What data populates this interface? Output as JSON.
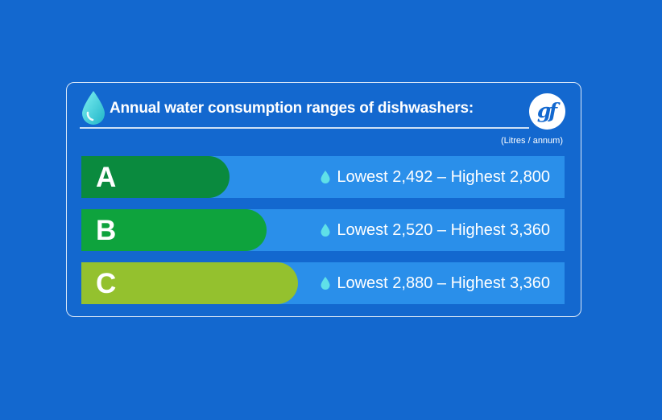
{
  "header": {
    "title": "Annual water consumption ranges of dishwashers:",
    "unit": "(Litres / annum)",
    "logo_text": "gf",
    "icon": "water-drop-icon"
  },
  "chart_data": {
    "type": "bar",
    "title": "Annual water consumption ranges of dishwashers:",
    "unit": "(Litres / annum)",
    "categories": [
      "A",
      "B",
      "C"
    ],
    "series": [
      {
        "name": "Lowest",
        "values": [
          2492,
          2520,
          2880
        ]
      },
      {
        "name": "Highest",
        "values": [
          2800,
          3360,
          3360
        ]
      }
    ],
    "labels": [
      "Lowest 2,492 – Highest 2,800",
      "Lowest 2,520 – Highest 3,360",
      "Lowest 2,880 – Highest 3,360"
    ],
    "bar_fraction": [
      0.306,
      0.383,
      0.448
    ],
    "colors": [
      "#0A8A3E",
      "#0EA33D",
      "#94C12E"
    ]
  },
  "colors": {
    "background": "#1368CF",
    "row_background": "#2A8FEA",
    "drop": "#5FE0E8"
  }
}
